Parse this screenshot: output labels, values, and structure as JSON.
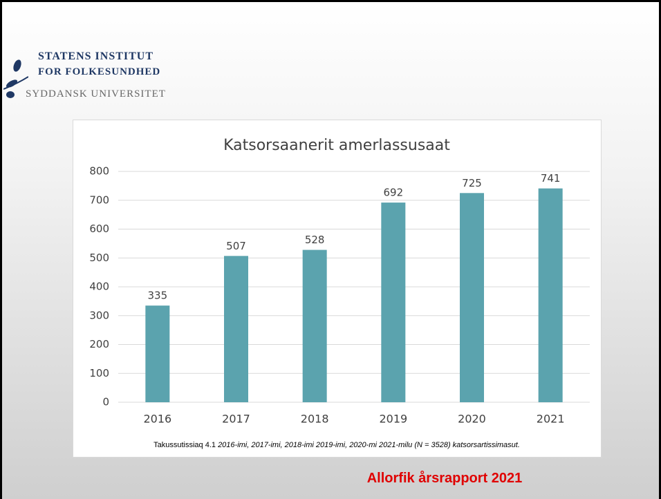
{
  "logo": {
    "line1": "STATENS INSTITUT",
    "line2": "FOR FOLKESUNDHED",
    "line3": "SYDDANSK UNIVERSITET"
  },
  "chart_data": {
    "type": "bar",
    "title": "Katsorsaanerit amerlassusaat",
    "categories": [
      "2016",
      "2017",
      "2018",
      "2019",
      "2020",
      "2021"
    ],
    "values": [
      335,
      507,
      528,
      692,
      725,
      741
    ],
    "color": "#5ba3ae",
    "ylim": [
      0,
      800
    ],
    "yticks": [
      0,
      100,
      200,
      300,
      400,
      500,
      600,
      700,
      800
    ],
    "grid": true
  },
  "caption": {
    "label": "Takussutissiaq 4.1",
    "text": "2016-imi, 2017-imi, 2018-imi 2019-imi, 2020-mi 2021-milu (N = 3528) katsorsartissimasut."
  },
  "footer": "Allorfik årsrapport 2021"
}
